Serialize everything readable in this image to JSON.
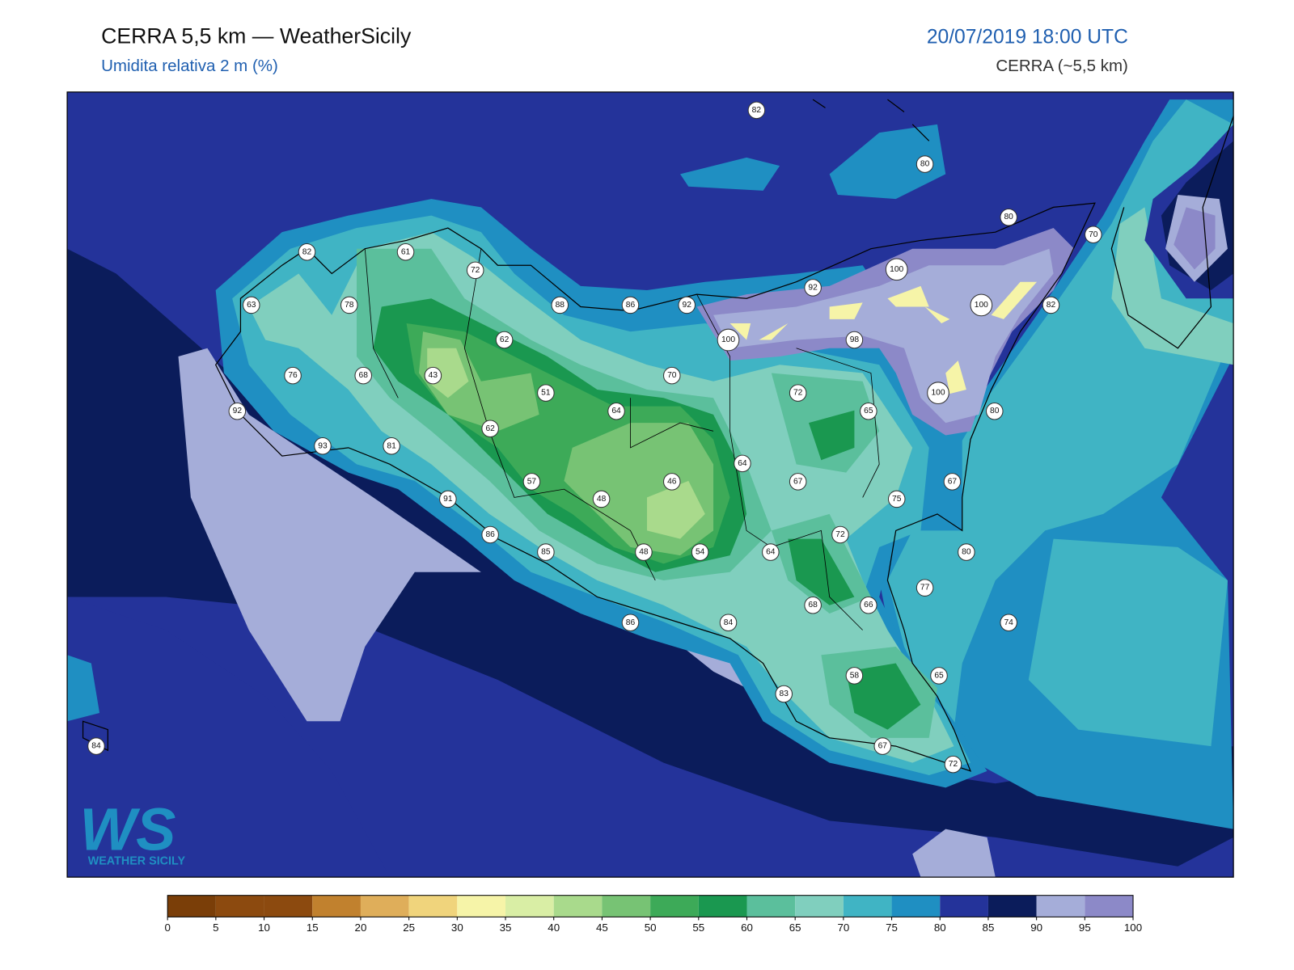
{
  "header": {
    "title": "CERRA 5,5 km — WeatherSicily",
    "subtitle": "Umidita relativa 2 m (%)",
    "datetime": "20/07/2019 18:00 UTC",
    "model": "CERRA (~5,5 km)"
  },
  "logo": {
    "mark": "WS",
    "name": "WEATHER SICILY"
  },
  "stations": [
    82,
    80,
    80,
    70,
    82,
    61,
    72,
    63,
    78,
    88,
    86,
    92,
    92,
    100,
    100,
    82,
    62,
    100,
    98,
    76,
    68,
    43,
    70,
    51,
    72,
    100,
    64,
    65,
    80,
    92,
    62,
    93,
    81,
    64,
    57,
    46,
    67,
    67,
    91,
    48,
    75,
    86,
    72,
    85,
    48,
    54,
    64,
    80,
    77,
    68,
    66,
    86,
    84,
    74,
    58,
    65,
    83,
    84,
    67,
    72
  ],
  "colorbar": {
    "ticks": [
      0,
      5,
      10,
      15,
      20,
      25,
      30,
      35,
      40,
      45,
      50,
      55,
      60,
      65,
      70,
      75,
      80,
      85,
      90,
      95,
      100
    ],
    "colors": [
      "#7a3e08",
      "#8c4a0f",
      "#8c4a0f",
      "#c1812e",
      "#dfae5a",
      "#f0d47c",
      "#f6f4a8",
      "#d9eea5",
      "#a9da8c",
      "#77c374",
      "#3daa58",
      "#1a9850",
      "#5bbf9c",
      "#80cfbe",
      "#40b4c4",
      "#1f8fc2",
      "#24339a",
      "#0b1c5b",
      "#a5add9",
      "#8c89c8"
    ]
  }
}
